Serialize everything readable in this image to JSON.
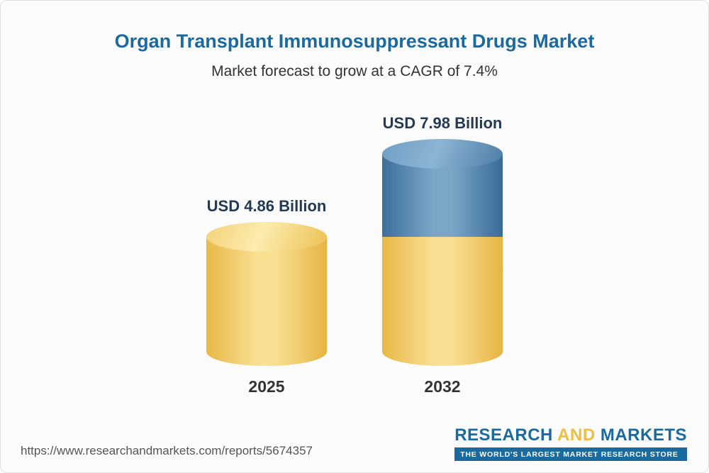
{
  "header": {
    "title": "Organ Transplant Immunosuppressant Drugs Market",
    "subtitle": "Market forecast to grow at a CAGR of 7.4%"
  },
  "chart_data": {
    "type": "bar",
    "title": "Organ Transplant Immunosuppressant Drugs Market",
    "subtitle": "Market forecast to grow at a CAGR of 7.4%",
    "cagr_percent": 7.4,
    "categories": [
      "2025",
      "2032"
    ],
    "values": [
      4.86,
      7.98
    ],
    "unit": "USD Billion",
    "value_labels": [
      "USD 4.86 Billion",
      "USD 7.98 Billion"
    ],
    "ylim": [
      0,
      8
    ],
    "grid": false,
    "legend": "none",
    "colors": {
      "base_segment": "#f5cf6e",
      "growth_segment": "#5d8fb5",
      "title_text": "#1a6aa0",
      "value_label_text": "#223a57"
    }
  },
  "footer": {
    "url": "https://www.researchandmarkets.com/reports/5674357",
    "logo": {
      "word_research": "RESEARCH",
      "word_and": "AND",
      "word_markets": "MARKETS",
      "tagline": "THE WORLD'S LARGEST MARKET RESEARCH STORE"
    }
  }
}
